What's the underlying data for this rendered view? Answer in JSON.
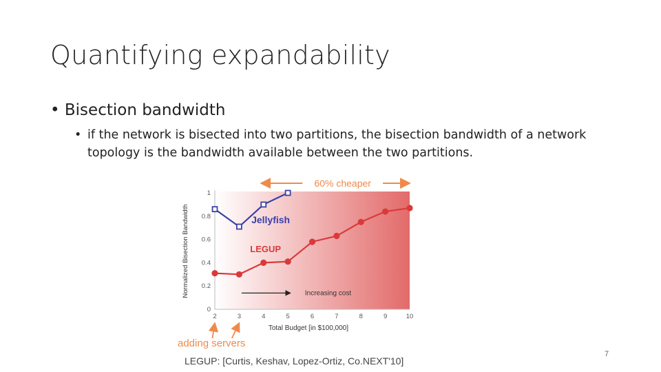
{
  "slide": {
    "title": "Quantifying expandability",
    "bullet": "Bisection bandwidth",
    "sub_bullet": "if the network is bisected into two partitions, the bisection bandwidth of a network topology is the bandwidth available between the two partitions.",
    "page_number": "7"
  },
  "chart_data": {
    "type": "line",
    "title": "",
    "xlabel": "Total Budget [in $100,000]",
    "ylabel": "Normalized Bisection Bandwidth",
    "x_ticks": [
      2,
      3,
      4,
      5,
      6,
      7,
      8,
      9,
      10
    ],
    "y_ticks": [
      "0",
      "0.2",
      "0.4",
      "0.6",
      "0.8",
      "1"
    ],
    "xlim": [
      2,
      10
    ],
    "ylim": [
      0,
      1
    ],
    "grid": false,
    "series": [
      {
        "name": "Jellyfish",
        "x": [
          2,
          3,
          4,
          5
        ],
        "y": [
          0.86,
          0.71,
          0.9,
          1.0
        ],
        "color": "#3a3fa8",
        "marker": "square"
      },
      {
        "name": "LEGUP",
        "x": [
          2,
          3,
          4,
          5,
          6,
          7,
          8,
          9,
          10
        ],
        "y": [
          0.31,
          0.3,
          0.4,
          0.41,
          0.58,
          0.63,
          0.75,
          0.84,
          0.87
        ],
        "color": "#d93a3a",
        "marker": "circle"
      }
    ],
    "annotations": {
      "cheaper": "60% cheaper",
      "increasing": "Increasing cost",
      "adding": "adding servers",
      "citation": "LEGUP: [Curtis, Keshav, Lopez-Ortiz, Co.NEXT'10]"
    },
    "colors": {
      "annotation_orange": "#f08a4b",
      "gradient_end": "#e36a6a",
      "gradient_start": "#ffffff"
    }
  }
}
